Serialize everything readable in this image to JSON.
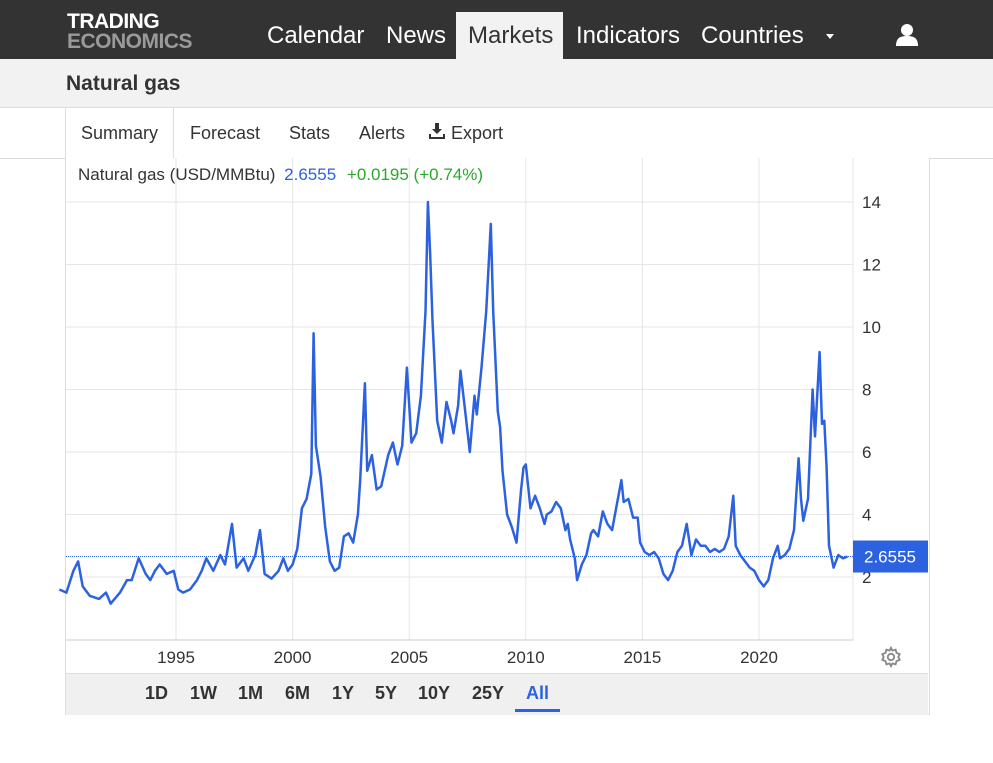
{
  "header": {
    "logo_line1": "TRADING",
    "logo_line2": "ECONOMICS",
    "nav": [
      {
        "label": "Calendar",
        "active": false
      },
      {
        "label": "News",
        "active": false
      },
      {
        "label": "Markets",
        "active": true
      },
      {
        "label": "Indicators",
        "active": false
      },
      {
        "label": "Countries",
        "active": false
      }
    ],
    "more_icon": "caret-down-icon",
    "user_icon": "user-icon"
  },
  "page": {
    "title": "Natural gas"
  },
  "tabs": [
    {
      "label": "Summary",
      "active": true
    },
    {
      "label": "Forecast",
      "active": false
    },
    {
      "label": "Stats",
      "active": false
    },
    {
      "label": "Alerts",
      "active": false
    },
    {
      "label": "Export",
      "active": false,
      "icon": "download-icon"
    }
  ],
  "legend": {
    "name": "Natural gas (USD/MMBtu)",
    "price": "2.6555",
    "change": "+0.0195 (+0.74%)"
  },
  "ranges": [
    {
      "label": "1D",
      "active": false
    },
    {
      "label": "1W",
      "active": false
    },
    {
      "label": "1M",
      "active": false
    },
    {
      "label": "6M",
      "active": false
    },
    {
      "label": "1Y",
      "active": false
    },
    {
      "label": "5Y",
      "active": false
    },
    {
      "label": "10Y",
      "active": false
    },
    {
      "label": "25Y",
      "active": false
    },
    {
      "label": "All",
      "active": true
    }
  ],
  "settings_icon": "gear-icon",
  "colors": {
    "line": "#2c62e0",
    "up": "#2ca82c",
    "nav_bg": "#333333"
  },
  "chart_data": {
    "type": "line",
    "title": "",
    "xlabel": "",
    "ylabel": "",
    "x_ticks": [
      "1995",
      "2000",
      "2005",
      "2010",
      "2015",
      "2020"
    ],
    "y_ticks": [
      2,
      4,
      6,
      8,
      10,
      12,
      14
    ],
    "ylim": [
      0,
      14.5
    ],
    "xlim": [
      1990.0,
      2023.9
    ],
    "grid": true,
    "last_value_label": "2.6555",
    "series": [
      {
        "name": "Natural gas",
        "points": [
          [
            1990.0,
            1.6
          ],
          [
            1990.3,
            1.5
          ],
          [
            1990.6,
            2.2
          ],
          [
            1990.8,
            2.5
          ],
          [
            1991.0,
            1.7
          ],
          [
            1991.3,
            1.4
          ],
          [
            1991.7,
            1.3
          ],
          [
            1992.0,
            1.5
          ],
          [
            1992.2,
            1.15
          ],
          [
            1992.6,
            1.5
          ],
          [
            1992.9,
            1.9
          ],
          [
            1993.1,
            1.9
          ],
          [
            1993.4,
            2.6
          ],
          [
            1993.7,
            2.1
          ],
          [
            1993.9,
            1.9
          ],
          [
            1994.1,
            2.2
          ],
          [
            1994.3,
            2.4
          ],
          [
            1994.6,
            2.1
          ],
          [
            1994.9,
            2.2
          ],
          [
            1995.1,
            1.6
          ],
          [
            1995.3,
            1.5
          ],
          [
            1995.6,
            1.6
          ],
          [
            1995.9,
            1.9
          ],
          [
            1996.1,
            2.2
          ],
          [
            1996.3,
            2.6
          ],
          [
            1996.6,
            2.2
          ],
          [
            1996.9,
            2.7
          ],
          [
            1997.1,
            2.4
          ],
          [
            1997.4,
            3.7
          ],
          [
            1997.6,
            2.3
          ],
          [
            1997.9,
            2.6
          ],
          [
            1998.1,
            2.2
          ],
          [
            1998.4,
            2.7
          ],
          [
            1998.6,
            3.5
          ],
          [
            1998.8,
            2.1
          ],
          [
            1999.1,
            1.95
          ],
          [
            1999.4,
            2.2
          ],
          [
            1999.6,
            2.6
          ],
          [
            1999.8,
            2.2
          ],
          [
            2000.0,
            2.4
          ],
          [
            2000.2,
            2.9
          ],
          [
            2000.4,
            4.2
          ],
          [
            2000.6,
            4.5
          ],
          [
            2000.8,
            5.3
          ],
          [
            2000.9,
            9.8
          ],
          [
            2001.0,
            6.2
          ],
          [
            2001.2,
            5.2
          ],
          [
            2001.4,
            3.6
          ],
          [
            2001.6,
            2.5
          ],
          [
            2001.8,
            2.2
          ],
          [
            2002.0,
            2.3
          ],
          [
            2002.2,
            3.3
          ],
          [
            2002.4,
            3.4
          ],
          [
            2002.6,
            3.1
          ],
          [
            2002.8,
            4.0
          ],
          [
            2002.9,
            5.1
          ],
          [
            2003.1,
            8.2
          ],
          [
            2003.2,
            5.4
          ],
          [
            2003.4,
            5.9
          ],
          [
            2003.6,
            4.8
          ],
          [
            2003.8,
            4.9
          ],
          [
            2004.1,
            5.9
          ],
          [
            2004.3,
            6.3
          ],
          [
            2004.5,
            5.6
          ],
          [
            2004.7,
            6.2
          ],
          [
            2004.9,
            8.7
          ],
          [
            2005.1,
            6.3
          ],
          [
            2005.3,
            6.6
          ],
          [
            2005.5,
            7.8
          ],
          [
            2005.7,
            10.5
          ],
          [
            2005.8,
            14.0
          ],
          [
            2005.9,
            12.3
          ],
          [
            2006.0,
            10.2
          ],
          [
            2006.2,
            7.0
          ],
          [
            2006.4,
            6.3
          ],
          [
            2006.6,
            7.6
          ],
          [
            2006.8,
            7.0
          ],
          [
            2006.9,
            6.6
          ],
          [
            2007.1,
            7.5
          ],
          [
            2007.2,
            8.6
          ],
          [
            2007.4,
            7.3
          ],
          [
            2007.6,
            6.0
          ],
          [
            2007.8,
            7.8
          ],
          [
            2007.9,
            7.2
          ],
          [
            2008.1,
            8.7
          ],
          [
            2008.3,
            10.5
          ],
          [
            2008.5,
            13.3
          ],
          [
            2008.6,
            10.5
          ],
          [
            2008.8,
            7.3
          ],
          [
            2008.9,
            6.8
          ],
          [
            2009.0,
            5.4
          ],
          [
            2009.2,
            4.0
          ],
          [
            2009.4,
            3.6
          ],
          [
            2009.6,
            3.1
          ],
          [
            2009.8,
            4.8
          ],
          [
            2009.9,
            5.5
          ],
          [
            2010.0,
            5.6
          ],
          [
            2010.2,
            4.2
          ],
          [
            2010.4,
            4.6
          ],
          [
            2010.6,
            4.2
          ],
          [
            2010.8,
            3.7
          ],
          [
            2010.9,
            4.0
          ],
          [
            2011.1,
            4.1
          ],
          [
            2011.3,
            4.4
          ],
          [
            2011.5,
            4.2
          ],
          [
            2011.7,
            3.5
          ],
          [
            2011.8,
            3.7
          ],
          [
            2011.9,
            3.2
          ],
          [
            2012.1,
            2.6
          ],
          [
            2012.2,
            1.9
          ],
          [
            2012.4,
            2.4
          ],
          [
            2012.6,
            2.7
          ],
          [
            2012.8,
            3.4
          ],
          [
            2012.9,
            3.5
          ],
          [
            2013.1,
            3.3
          ],
          [
            2013.3,
            4.1
          ],
          [
            2013.5,
            3.7
          ],
          [
            2013.7,
            3.5
          ],
          [
            2013.9,
            4.3
          ],
          [
            2014.1,
            5.1
          ],
          [
            2014.2,
            4.4
          ],
          [
            2014.4,
            4.5
          ],
          [
            2014.6,
            3.9
          ],
          [
            2014.8,
            3.9
          ],
          [
            2014.9,
            3.1
          ],
          [
            2015.1,
            2.8
          ],
          [
            2015.3,
            2.7
          ],
          [
            2015.5,
            2.8
          ],
          [
            2015.7,
            2.6
          ],
          [
            2015.9,
            2.1
          ],
          [
            2016.1,
            1.9
          ],
          [
            2016.3,
            2.2
          ],
          [
            2016.5,
            2.8
          ],
          [
            2016.7,
            3.0
          ],
          [
            2016.9,
            3.7
          ],
          [
            2017.1,
            2.7
          ],
          [
            2017.3,
            3.2
          ],
          [
            2017.5,
            3.0
          ],
          [
            2017.7,
            3.0
          ],
          [
            2017.9,
            2.8
          ],
          [
            2018.1,
            2.9
          ],
          [
            2018.3,
            2.8
          ],
          [
            2018.5,
            2.9
          ],
          [
            2018.7,
            3.3
          ],
          [
            2018.9,
            4.6
          ],
          [
            2019.0,
            3.0
          ],
          [
            2019.2,
            2.7
          ],
          [
            2019.4,
            2.5
          ],
          [
            2019.6,
            2.3
          ],
          [
            2019.8,
            2.2
          ],
          [
            2020.0,
            1.9
          ],
          [
            2020.2,
            1.7
          ],
          [
            2020.4,
            1.9
          ],
          [
            2020.6,
            2.6
          ],
          [
            2020.8,
            3.0
          ],
          [
            2020.9,
            2.6
          ],
          [
            2021.1,
            2.7
          ],
          [
            2021.3,
            2.9
          ],
          [
            2021.5,
            3.5
          ],
          [
            2021.7,
            5.8
          ],
          [
            2021.8,
            4.5
          ],
          [
            2021.9,
            3.8
          ],
          [
            2022.1,
            4.5
          ],
          [
            2022.3,
            8.0
          ],
          [
            2022.4,
            6.5
          ],
          [
            2022.6,
            9.2
          ],
          [
            2022.7,
            6.9
          ],
          [
            2022.8,
            7.0
          ],
          [
            2022.9,
            5.5
          ],
          [
            2023.0,
            3.0
          ],
          [
            2023.2,
            2.3
          ],
          [
            2023.4,
            2.7
          ],
          [
            2023.6,
            2.6
          ],
          [
            2023.8,
            2.6555
          ]
        ]
      }
    ]
  }
}
